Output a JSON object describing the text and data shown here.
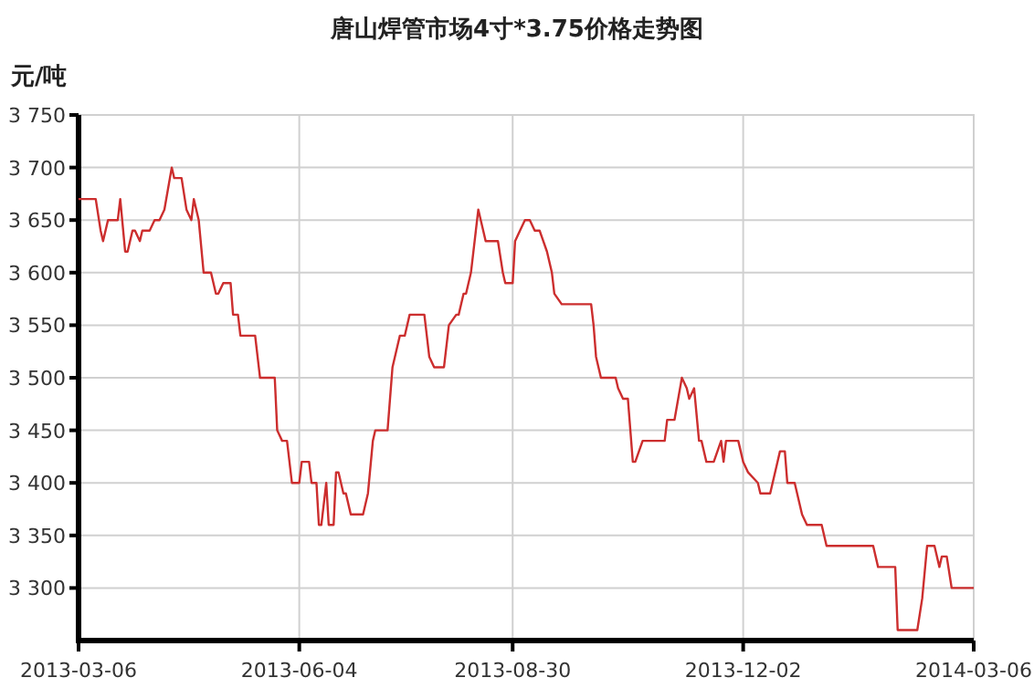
{
  "chart_data": {
    "type": "line",
    "title": "唐山焊管市场4寸*3.75价格走势图",
    "ylabel": "元/吨",
    "x": [
      "2013-03-06",
      "2013-03-13",
      "2013-03-15",
      "2013-03-16",
      "2013-03-18",
      "2013-03-22",
      "2013-03-23",
      "2013-03-25",
      "2013-03-26",
      "2013-03-28",
      "2013-03-29",
      "2013-03-31",
      "2013-04-01",
      "2013-04-04",
      "2013-04-06",
      "2013-04-08",
      "2013-04-10",
      "2013-04-13",
      "2013-04-14",
      "2013-04-17",
      "2013-04-19",
      "2013-04-21",
      "2013-04-22",
      "2013-04-24",
      "2013-04-26",
      "2013-04-29",
      "2013-05-01",
      "2013-05-02",
      "2013-05-04",
      "2013-05-07",
      "2013-05-08",
      "2013-05-10",
      "2013-05-11",
      "2013-05-17",
      "2013-05-19",
      "2013-05-25",
      "2013-05-26",
      "2013-05-28",
      "2013-05-30",
      "2013-06-01",
      "2013-06-04",
      "2013-06-05",
      "2013-06-08",
      "2013-06-09",
      "2013-06-11",
      "2013-06-12",
      "2013-06-13",
      "2013-06-15",
      "2013-06-16",
      "2013-06-18",
      "2013-06-19",
      "2013-06-20",
      "2013-06-22",
      "2013-06-23",
      "2013-06-25",
      "2013-06-30",
      "2013-07-02",
      "2013-07-04",
      "2013-07-05",
      "2013-07-10",
      "2013-07-12",
      "2013-07-15",
      "2013-07-17",
      "2013-07-19",
      "2013-07-25",
      "2013-07-27",
      "2013-07-29",
      "2013-08-02",
      "2013-08-04",
      "2013-08-07",
      "2013-08-08",
      "2013-08-10",
      "2013-08-11",
      "2013-08-13",
      "2013-08-15",
      "2013-08-16",
      "2013-08-18",
      "2013-08-19",
      "2013-08-24",
      "2013-08-26",
      "2013-08-27",
      "2013-08-30",
      "2013-08-31",
      "2013-09-02",
      "2013-09-04",
      "2013-09-06",
      "2013-09-08",
      "2013-09-10",
      "2013-09-13",
      "2013-09-15",
      "2013-09-16",
      "2013-09-19",
      "2013-10-01",
      "2013-10-02",
      "2013-10-03",
      "2013-10-04",
      "2013-10-05",
      "2013-10-11",
      "2013-10-12",
      "2013-10-14",
      "2013-10-16",
      "2013-10-18",
      "2013-10-19",
      "2013-10-22",
      "2013-10-31",
      "2013-11-01",
      "2013-11-04",
      "2013-11-07",
      "2013-11-09",
      "2013-11-10",
      "2013-11-12",
      "2013-11-14",
      "2013-11-15",
      "2013-11-17",
      "2013-11-20",
      "2013-11-23",
      "2013-11-24",
      "2013-11-25",
      "2013-11-30",
      "2013-12-02",
      "2013-12-04",
      "2013-12-08",
      "2013-12-09",
      "2013-12-13",
      "2013-12-15",
      "2013-12-17",
      "2013-12-19",
      "2013-12-20",
      "2013-12-23",
      "2013-12-25",
      "2013-12-26",
      "2013-12-28",
      "2014-01-03",
      "2014-01-05",
      "2014-01-24",
      "2014-01-26",
      "2014-02-02",
      "2014-02-03",
      "2014-02-11",
      "2014-02-13",
      "2014-02-15",
      "2014-02-18",
      "2014-02-20",
      "2014-02-21",
      "2014-02-23",
      "2014-02-25",
      "2014-03-06"
    ],
    "series": [
      {
        "color": "#cc2e2e",
        "values": [
          3670,
          3670,
          3640,
          3630,
          3650,
          3650,
          3670,
          3620,
          3620,
          3640,
          3640,
          3630,
          3640,
          3640,
          3650,
          3650,
          3660,
          3700,
          3690,
          3690,
          3660,
          3650,
          3670,
          3650,
          3600,
          3600,
          3580,
          3580,
          3590,
          3590,
          3560,
          3560,
          3540,
          3540,
          3500,
          3500,
          3450,
          3440,
          3440,
          3400,
          3400,
          3420,
          3420,
          3400,
          3400,
          3360,
          3360,
          3400,
          3360,
          3360,
          3410,
          3410,
          3390,
          3390,
          3370,
          3370,
          3390,
          3440,
          3450,
          3450,
          3510,
          3540,
          3540,
          3560,
          3560,
          3520,
          3510,
          3510,
          3550,
          3560,
          3560,
          3580,
          3580,
          3600,
          3640,
          3660,
          3640,
          3630,
          3630,
          3600,
          3590,
          3590,
          3630,
          3640,
          3650,
          3650,
          3640,
          3640,
          3620,
          3600,
          3580,
          3570,
          3570,
          3550,
          3520,
          3510,
          3500,
          3500,
          3490,
          3480,
          3480,
          3420,
          3420,
          3440,
          3440,
          3460,
          3460,
          3500,
          3490,
          3480,
          3490,
          3440,
          3440,
          3420,
          3420,
          3440,
          3420,
          3440,
          3440,
          3420,
          3410,
          3400,
          3390,
          3390,
          3410,
          3430,
          3430,
          3400,
          3400,
          3380,
          3370,
          3360,
          3360,
          3340,
          3340,
          3320,
          3320,
          3260,
          3260,
          3290,
          3340,
          3340,
          3320,
          3330,
          3330,
          3300,
          3300
        ]
      }
    ],
    "xlim": [
      "2013-03-06",
      "2014-03-06"
    ],
    "xticks": [
      "2013-03-06",
      "2013-06-04",
      "2013-08-30",
      "2013-12-02",
      "2014-03-06"
    ],
    "ylim": [
      3250,
      3750
    ],
    "yticks": [
      {
        "value": 3300,
        "label": "3 300"
      },
      {
        "value": 3350,
        "label": "3 350"
      },
      {
        "value": 3400,
        "label": "3 400"
      },
      {
        "value": 3450,
        "label": "3 450"
      },
      {
        "value": 3500,
        "label": "3 500"
      },
      {
        "value": 3550,
        "label": "3 550"
      },
      {
        "value": 3600,
        "label": "3 600"
      },
      {
        "value": 3650,
        "label": "3 650"
      },
      {
        "value": 3700,
        "label": "3 700"
      },
      {
        "value": 3750,
        "label": "3 750"
      }
    ],
    "grid": true,
    "marker": "none",
    "line_style": "solid"
  }
}
